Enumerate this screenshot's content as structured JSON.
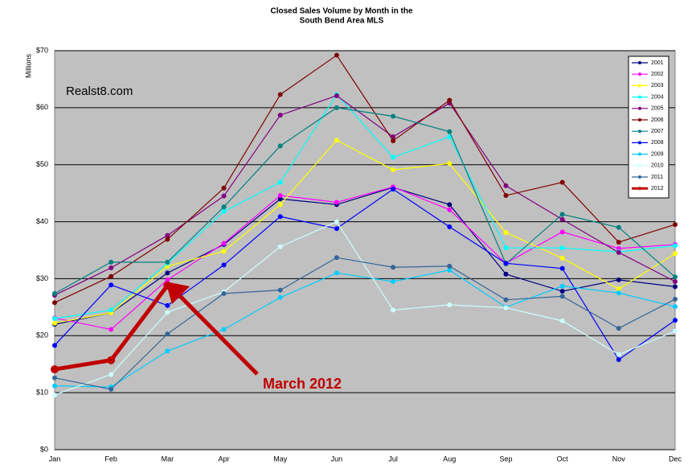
{
  "chart_data": {
    "type": "line",
    "title": [
      "Closed Sales Volume by Month in the",
      "South Bend Area MLS"
    ],
    "y_label": "Millions",
    "annotations": [
      "Realst8.com",
      "March 2012"
    ],
    "categories": [
      "Jan",
      "Feb",
      "Mar",
      "Apr",
      "May",
      "Jun",
      "Jul",
      "Aug",
      "Sep",
      "Oct",
      "Nov",
      "Dec"
    ],
    "ylim": [
      0,
      70
    ],
    "yticks": [
      {
        "value": 0,
        "label": "$0"
      },
      {
        "value": 10,
        "label": "$10"
      },
      {
        "value": 20,
        "label": "$20"
      },
      {
        "value": 30,
        "label": "$30"
      },
      {
        "value": 40,
        "label": "$40"
      },
      {
        "value": 50,
        "label": "$50"
      },
      {
        "value": 60,
        "label": "$60"
      },
      {
        "value": 70,
        "label": "$70"
      }
    ],
    "grid": true,
    "legend": "upper right",
    "series": [
      {
        "name": "2001",
        "color": "#000080",
        "values": [
          22,
          24,
          31,
          36,
          44,
          43,
          46,
          43,
          30.8,
          27.8,
          29.8,
          28.6
        ]
      },
      {
        "name": "2002",
        "color": "#ff00ff",
        "values": [
          23.1,
          21.1,
          29.8,
          36.2,
          44.6,
          43.4,
          46.1,
          42.1,
          32.7,
          38.2,
          35.3,
          36.0
        ]
      },
      {
        "name": "2003",
        "color": "#ffff00",
        "values": [
          22.2,
          24.0,
          32.2,
          34.8,
          43.0,
          54.3,
          49.1,
          50.2,
          38.1,
          33.6,
          28.2,
          34.4
        ]
      },
      {
        "name": "2004",
        "color": "#00ffff",
        "values": [
          23.0,
          24.5,
          32.7,
          41.8,
          46.9,
          62.3,
          51.3,
          54.9,
          35.4,
          35.4,
          34.7,
          35.8
        ]
      },
      {
        "name": "2005",
        "color": "#800080",
        "values": [
          27.1,
          31.9,
          37.6,
          44.5,
          58.7,
          62.1,
          54.9,
          60.8,
          46.3,
          40.4,
          34.6,
          29.5
        ]
      },
      {
        "name": "2006",
        "color": "#800000",
        "values": [
          25.8,
          30.4,
          36.9,
          45.9,
          62.3,
          69.2,
          54.2,
          61.3,
          44.6,
          46.9,
          36.4,
          39.5
        ]
      },
      {
        "name": "2007",
        "color": "#008080",
        "values": [
          27.4,
          32.9,
          32.9,
          42.6,
          53.3,
          60.0,
          58.5,
          55.8,
          32.6,
          41.3,
          39.0,
          30.3
        ]
      },
      {
        "name": "2008",
        "color": "#0000ff",
        "values": [
          18.3,
          28.9,
          25.3,
          32.4,
          40.9,
          38.8,
          45.7,
          39.1,
          32.7,
          31.8,
          15.8,
          22.7
        ]
      },
      {
        "name": "2009",
        "color": "#00ccff",
        "values": [
          11.2,
          11.0,
          17.3,
          21.1,
          26.7,
          31.0,
          29.5,
          31.5,
          25.0,
          28.7,
          27.5,
          25.1
        ]
      },
      {
        "name": "2010",
        "color": "#ccffff",
        "values": [
          9.6,
          13.2,
          24.1,
          27.7,
          35.6,
          40.0,
          24.5,
          25.4,
          24.9,
          22.6,
          16.7,
          20.8
        ]
      },
      {
        "name": "2011",
        "color": "#336699",
        "values": [
          12.6,
          10.6,
          20.3,
          27.4,
          28.0,
          33.7,
          32.0,
          32.2,
          26.3,
          26.9,
          21.3,
          26.4
        ]
      },
      {
        "name": "2012",
        "color": "#c00000",
        "values": [
          14.1,
          15.7,
          28.8,
          null,
          null,
          null,
          null,
          null,
          null,
          null,
          null,
          null
        ]
      }
    ]
  }
}
